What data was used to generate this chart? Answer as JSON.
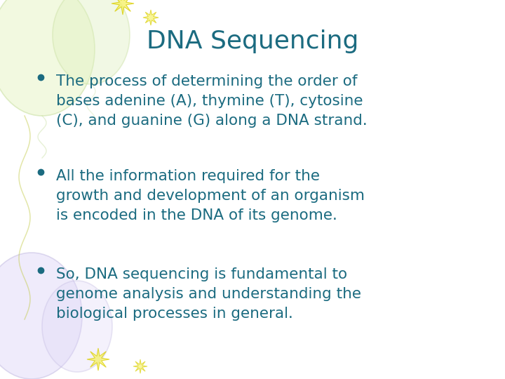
{
  "title": "DNA Sequencing",
  "title_color": "#1b6b80",
  "title_fontsize": 26,
  "bullet_color": "#1b6b80",
  "bullet_fontsize": 15.5,
  "background_color": "#ffffff",
  "bullets": [
    "The process of determining the order of\nbases adenine (A), thymine (T), cytosine\n(C), and guanine (G) along a DNA strand.",
    "All the information required for the\ngrowth and development of an organism\nis encoded in the DNA of its genome.",
    "So, DNA sequencing is fundamental to\ngenome analysis and understanding the\nbiological processes in general."
  ],
  "balloon_green_color": "#e8f5c8",
  "balloon_green_outline": "#c8dfa0",
  "balloon_green2_color": "#dff0c0",
  "balloon_purple_color": "#e0d8f8",
  "balloon_purple_outline": "#c0b8e0",
  "star_color": "#f5f060",
  "star_outline": "#d8cc00"
}
